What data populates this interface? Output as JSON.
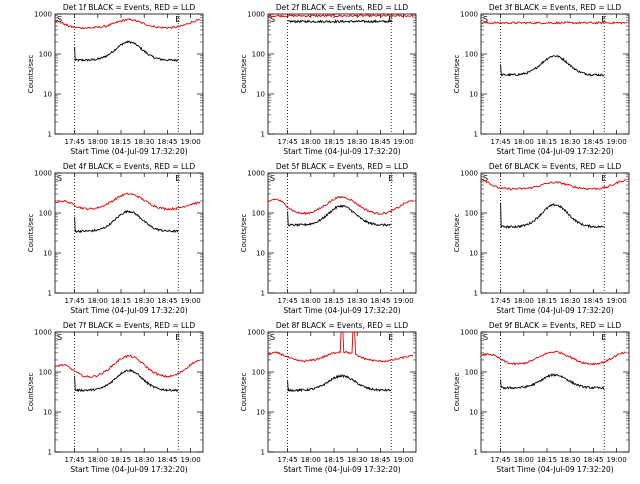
{
  "page": {
    "background": "#ffffff",
    "colors": {
      "events": "#000000",
      "lld": "#e00000",
      "axes": "#000000"
    }
  },
  "chart_data": [
    {
      "type": "line",
      "scale": "log",
      "title": "Det 1f BLACK = Events, RED = LLD",
      "xlabel": "Start Time (04-Jul-09 17:32:20)",
      "ylabel": "Counts/sec",
      "xticks": [
        "17:45",
        "18:00",
        "18:15",
        "18:30",
        "18:45",
        "19:00"
      ],
      "yticks": [
        "1",
        "10",
        "100",
        "1000"
      ],
      "ylim": [
        1,
        1000
      ],
      "markers": [
        "S",
        "E"
      ],
      "series": [
        {
          "name": "Events",
          "color": "#000000",
          "shape": "hump",
          "x_range": [
            "17:45",
            "18:52"
          ],
          "base": 70,
          "peak": 200,
          "peak_at": "18:20",
          "start_spike": 150
        },
        {
          "name": "LLD",
          "color": "#e00000",
          "shape": "hump",
          "x_range": [
            "17:32",
            "19:06"
          ],
          "base": 450,
          "peak": 720,
          "peak_at": "18:20",
          "start_value": 680,
          "end_value": 700
        }
      ]
    },
    {
      "type": "line",
      "scale": "log",
      "title": "Det 2f BLACK = Events, RED = LLD",
      "xlabel": "Start Time (04-Jul-09 17:32:20)",
      "ylabel": "Counts/sec",
      "xticks": [
        "17:45",
        "18:00",
        "18:15",
        "18:30",
        "18:45",
        "19:00"
      ],
      "yticks": [
        "1",
        "10",
        "100",
        "1000"
      ],
      "ylim": [
        1,
        1000
      ],
      "markers": [
        "S",
        "E"
      ],
      "series": [
        {
          "name": "Events",
          "color": "#000000",
          "shape": "flat",
          "x_range": [
            "17:45",
            "18:52"
          ],
          "base": 650,
          "peak": 650,
          "peak_at": "18:20"
        },
        {
          "name": "LLD",
          "color": "#e00000",
          "shape": "flat",
          "x_range": [
            "17:32",
            "19:06"
          ],
          "base": 900,
          "peak": 900,
          "peak_at": "18:20"
        }
      ]
    },
    {
      "type": "line",
      "scale": "log",
      "title": "Det 3f BLACK = Events, RED = LLD",
      "xlabel": "Start Time (04-Jul-09 17:32:20)",
      "ylabel": "Counts/sec",
      "xticks": [
        "17:45",
        "18:00",
        "18:15",
        "18:30",
        "18:45",
        "19:00"
      ],
      "yticks": [
        "1",
        "10",
        "100",
        "1000"
      ],
      "ylim": [
        1,
        1000
      ],
      "markers": [
        "S",
        "E"
      ],
      "series": [
        {
          "name": "Events",
          "color": "#000000",
          "shape": "hump",
          "x_range": [
            "17:45",
            "18:52"
          ],
          "base": 30,
          "peak": 90,
          "peak_at": "18:20",
          "start_spike": 55
        },
        {
          "name": "LLD",
          "color": "#e00000",
          "shape": "flat",
          "x_range": [
            "17:32",
            "19:06"
          ],
          "base": 600,
          "peak": 600,
          "peak_at": "18:20"
        }
      ]
    },
    {
      "type": "line",
      "scale": "log",
      "title": "Det 4f BLACK = Events, RED = LLD",
      "xlabel": "Start Time (04-Jul-09 17:32:20)",
      "ylabel": "Counts/sec",
      "xticks": [
        "17:45",
        "18:00",
        "18:15",
        "18:30",
        "18:45",
        "19:00"
      ],
      "yticks": [
        "1",
        "10",
        "100",
        "1000"
      ],
      "ylim": [
        1,
        1000
      ],
      "markers": [
        "S",
        "E"
      ],
      "series": [
        {
          "name": "Events",
          "color": "#000000",
          "shape": "hump",
          "x_range": [
            "17:45",
            "18:52"
          ],
          "base": 35,
          "peak": 110,
          "peak_at": "18:20",
          "start_spike": 80
        },
        {
          "name": "LLD",
          "color": "#e00000",
          "shape": "wave",
          "x_range": [
            "17:32",
            "19:06"
          ],
          "base": 120,
          "peak": 300,
          "peak_at": "18:20",
          "start_value": 200,
          "end_value": 180
        }
      ]
    },
    {
      "type": "line",
      "scale": "log",
      "title": "Det 5f BLACK = Events, RED = LLD",
      "xlabel": "Start Time (04-Jul-09 17:32:20)",
      "ylabel": "Counts/sec",
      "xticks": [
        "17:45",
        "18:00",
        "18:15",
        "18:30",
        "18:45",
        "19:00"
      ],
      "yticks": [
        "1",
        "10",
        "100",
        "1000"
      ],
      "ylim": [
        1,
        1000
      ],
      "markers": [
        "S",
        "E"
      ],
      "series": [
        {
          "name": "Events",
          "color": "#000000",
          "shape": "hump",
          "x_range": [
            "17:45",
            "18:52"
          ],
          "base": 50,
          "peak": 150,
          "peak_at": "18:20",
          "start_spike": 110
        },
        {
          "name": "LLD",
          "color": "#e00000",
          "shape": "wave",
          "x_range": [
            "17:32",
            "19:06"
          ],
          "base": 90,
          "peak": 250,
          "peak_at": "18:20",
          "start_value": 220,
          "end_value": 200
        }
      ]
    },
    {
      "type": "line",
      "scale": "log",
      "title": "Det 6f BLACK = Events, RED = LLD",
      "xlabel": "Start Time (04-Jul-09 17:32:20)",
      "ylabel": "Counts/sec",
      "xticks": [
        "17:45",
        "18:00",
        "18:15",
        "18:30",
        "18:45",
        "19:00"
      ],
      "yticks": [
        "1",
        "10",
        "100",
        "1000"
      ],
      "ylim": [
        1,
        1000
      ],
      "markers": [
        "S",
        "E"
      ],
      "series": [
        {
          "name": "Events",
          "color": "#000000",
          "shape": "hump",
          "x_range": [
            "17:45",
            "18:52"
          ],
          "base": 45,
          "peak": 160,
          "peak_at": "18:20",
          "start_spike": 180
        },
        {
          "name": "LLD",
          "color": "#e00000",
          "shape": "hump",
          "x_range": [
            "17:32",
            "19:06"
          ],
          "base": 400,
          "peak": 580,
          "peak_at": "18:20",
          "start_value": 700,
          "end_value": 650
        }
      ]
    },
    {
      "type": "line",
      "scale": "log",
      "title": "Det 7f BLACK = Events, RED = LLD",
      "xlabel": "Start Time (04-Jul-09 17:32:20)",
      "ylabel": "Counts/sec",
      "xticks": [
        "17:45",
        "18:00",
        "18:15",
        "18:30",
        "18:45",
        "19:00"
      ],
      "yticks": [
        "1",
        "10",
        "100",
        "1000"
      ],
      "ylim": [
        1,
        1000
      ],
      "markers": [
        "S",
        "E"
      ],
      "series": [
        {
          "name": "Events",
          "color": "#000000",
          "shape": "hump",
          "x_range": [
            "17:45",
            "18:52"
          ],
          "base": 35,
          "peak": 110,
          "peak_at": "18:20",
          "start_spike": 80
        },
        {
          "name": "LLD",
          "color": "#e00000",
          "shape": "wave",
          "x_range": [
            "17:32",
            "19:06"
          ],
          "base": 70,
          "peak": 250,
          "peak_at": "18:20",
          "start_value": 150,
          "end_value": 190
        }
      ]
    },
    {
      "type": "line",
      "scale": "log",
      "title": "Det 8f BLACK = Events, RED = LLD",
      "xlabel": "Start Time (04-Jul-09 17:32:20)",
      "ylabel": "Counts/sec",
      "xticks": [
        "17:45",
        "18:00",
        "18:15",
        "18:30",
        "18:45",
        "19:00"
      ],
      "yticks": [
        "1",
        "10",
        "100",
        "1000"
      ],
      "ylim": [
        1,
        1000
      ],
      "markers": [
        "S",
        "E"
      ],
      "series": [
        {
          "name": "Events",
          "color": "#000000",
          "shape": "hump",
          "x_range": [
            "17:45",
            "18:52"
          ],
          "base": 35,
          "peak": 80,
          "peak_at": "18:20",
          "start_spike": 60
        },
        {
          "name": "LLD",
          "color": "#e00000",
          "shape": "wave",
          "x_range": [
            "17:32",
            "19:06"
          ],
          "base": 180,
          "peak": 320,
          "peak_at": "18:20",
          "start_value": 300,
          "end_value": 250,
          "spikes": [
            "18:20",
            "18:28"
          ]
        }
      ]
    },
    {
      "type": "line",
      "scale": "log",
      "title": "Det 9f BLACK = Events, RED = LLD",
      "xlabel": "Start Time (04-Jul-09 17:32:20)",
      "ylabel": "Counts/sec",
      "xticks": [
        "17:45",
        "18:00",
        "18:15",
        "18:30",
        "18:45",
        "19:00"
      ],
      "yticks": [
        "1",
        "10",
        "100",
        "1000"
      ],
      "ylim": [
        1,
        1000
      ],
      "markers": [
        "S",
        "E"
      ],
      "series": [
        {
          "name": "Events",
          "color": "#000000",
          "shape": "hump",
          "x_range": [
            "17:45",
            "18:52"
          ],
          "base": 40,
          "peak": 85,
          "peak_at": "18:20",
          "start_spike": 65
        },
        {
          "name": "LLD",
          "color": "#e00000",
          "shape": "wave",
          "x_range": [
            "17:32",
            "19:06"
          ],
          "base": 150,
          "peak": 320,
          "peak_at": "18:20",
          "start_value": 280,
          "end_value": 300
        }
      ]
    }
  ]
}
